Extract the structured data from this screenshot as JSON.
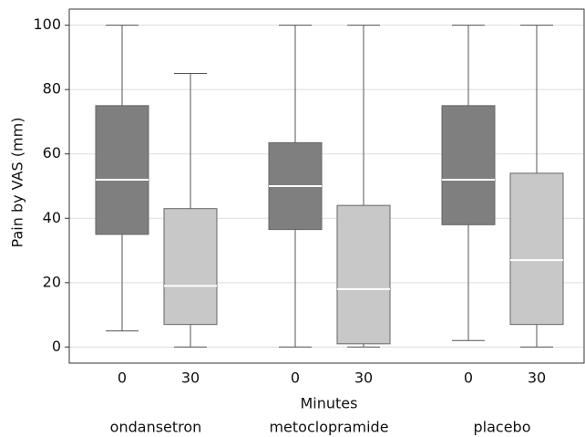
{
  "chart_data": {
    "type": "box",
    "ylabel": "Pain by VAS (mm)",
    "xlabel": "Minutes",
    "ylim": [
      -5,
      105
    ],
    "yticks": [
      0,
      20,
      40,
      60,
      80,
      100
    ],
    "grid": true,
    "colors": [
      "#7f7f7f",
      "#c8c8c8"
    ],
    "groups": [
      {
        "name": "ondansetron",
        "boxes": [
          {
            "label": "0",
            "min": 5,
            "q1": 35,
            "median": 52,
            "q3": 75,
            "max": 100
          },
          {
            "label": "30",
            "min": 0,
            "q1": 7,
            "median": 19,
            "q3": 43,
            "max": 85
          }
        ]
      },
      {
        "name": "metoclopramide",
        "boxes": [
          {
            "label": "0",
            "min": 0,
            "q1": 36.5,
            "median": 50,
            "q3": 63.5,
            "max": 100
          },
          {
            "label": "30",
            "min": 0,
            "q1": 1,
            "median": 18,
            "q3": 44,
            "max": 100
          }
        ]
      },
      {
        "name": "placebo",
        "boxes": [
          {
            "label": "0",
            "min": 2,
            "q1": 38,
            "median": 52,
            "q3": 75,
            "max": 100
          },
          {
            "label": "30",
            "min": 0,
            "q1": 7,
            "median": 27,
            "q3": 54,
            "max": 100
          }
        ]
      }
    ]
  }
}
